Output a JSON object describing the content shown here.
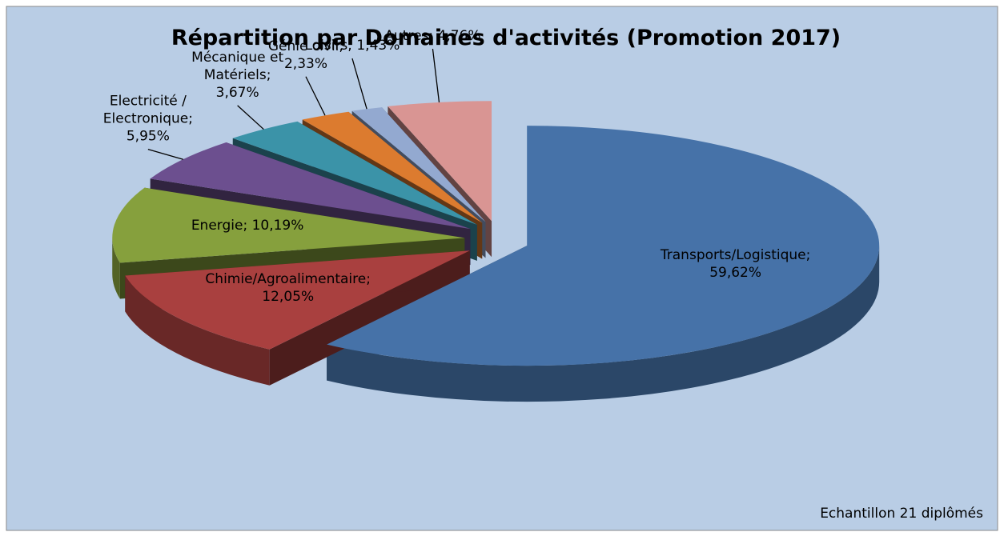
{
  "chart_data": {
    "type": "pie3d",
    "title": "Répartition par Domaines d'activités (Promotion 2017)",
    "note": "Echantillon 21 diplômés",
    "values": [
      59.62,
      12.05,
      10.19,
      5.95,
      3.67,
      2.33,
      1.43,
      4.76
    ],
    "value_labels": [
      "Transports/Logistique; 59,62%",
      "Chimie/Agroalimentaire; 12,05%",
      "Energie; 10,19%",
      "Electricité / Electronique; 5,95%",
      "Mécanique et Matériels; 3,67%",
      "Génie civil; 2,33%",
      "Loisirs; 1,43%",
      "Autres; 4,76%"
    ],
    "colors": [
      "#4672a8",
      "#a9403f",
      "#86a03d",
      "#6c4f8f",
      "#3b93a8",
      "#dc7b2f",
      "#93a9d0",
      "#d99593"
    ]
  }
}
